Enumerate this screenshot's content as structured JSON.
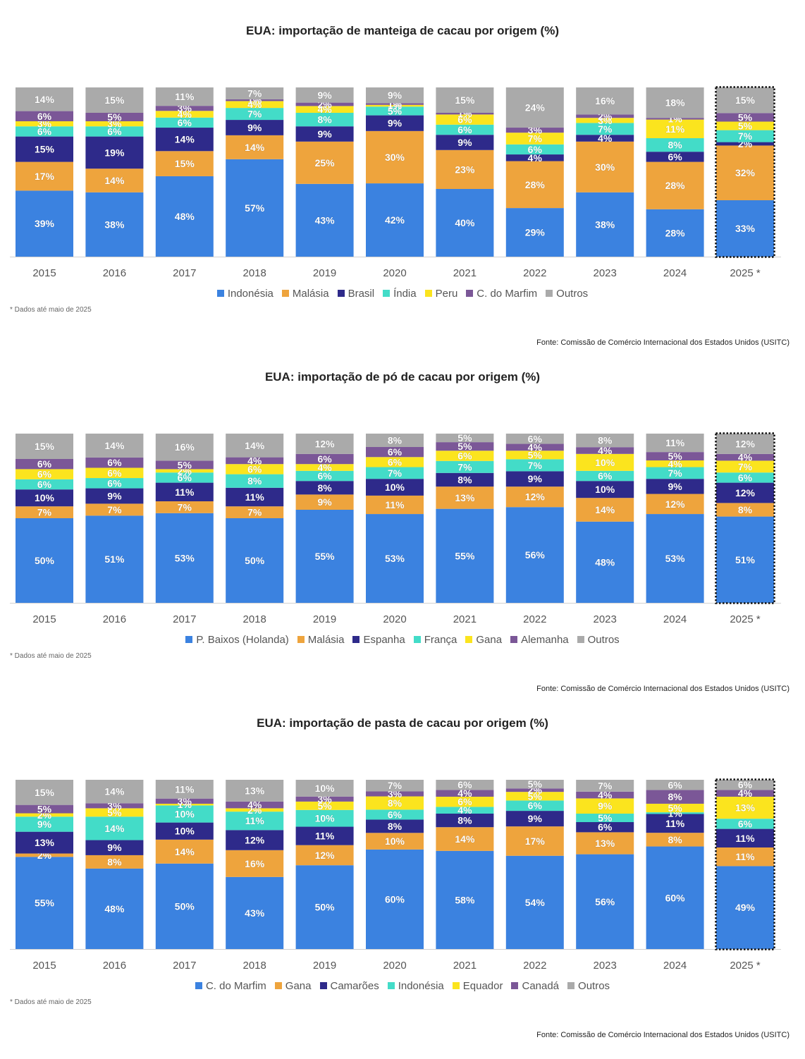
{
  "colors": {
    "blue": "#3b82e0",
    "orange": "#eea43d",
    "navy": "#2e2a8a",
    "teal": "#43dcc8",
    "yellow": "#fbe41e",
    "purple": "#7b5797",
    "gray": "#aaaaaa"
  },
  "charts": [
    {
      "title": "EUA: importação de manteiga de cacau por origem (%)",
      "note": "* Dados até maio de 2025",
      "source": "Fonte: Comissão de Comércio Internacional dos Estados Unidos (USITC)"
    },
    {
      "title": "EUA: importação de pó de cacau por origem (%)",
      "note": "* Dados até maio de 2025",
      "source": "Fonte: Comissão de Comércio Internacional dos Estados Unidos (USITC)"
    },
    {
      "title": "EUA: importação de pasta de cacau por origem (%)",
      "note": "* Dados até maio de 2025",
      "source": "Fonte: Comissão de Comércio Internacional dos Estados Unidos (USITC)"
    }
  ],
  "chart_data": [
    {
      "type": "bar",
      "stacked": true,
      "title": "EUA: importação de manteiga de cacau por origem (%)",
      "categories": [
        "2015",
        "2016",
        "2017",
        "2018",
        "2019",
        "2020",
        "2021",
        "2022",
        "2023",
        "2024",
        "2025 *"
      ],
      "highlighted_category": "2025 *",
      "ylim": [
        0,
        100
      ],
      "legend_position": "bottom-center",
      "series": [
        {
          "name": "Indonésia",
          "color": "blue",
          "values": [
            39,
            38,
            48,
            57,
            43,
            42,
            40,
            29,
            38,
            28,
            33
          ]
        },
        {
          "name": "Malásia",
          "color": "orange",
          "values": [
            17,
            14,
            15,
            14,
            25,
            30,
            23,
            28,
            30,
            28,
            32
          ]
        },
        {
          "name": "Brasil",
          "color": "navy",
          "values": [
            15,
            19,
            14,
            9,
            9,
            9,
            9,
            4,
            4,
            6,
            2
          ]
        },
        {
          "name": "Índia",
          "color": "teal",
          "values": [
            6,
            6,
            6,
            7,
            8,
            5,
            6,
            6,
            7,
            8,
            7
          ]
        },
        {
          "name": "Peru",
          "color": "yellow",
          "values": [
            3,
            3,
            4,
            4,
            4,
            1,
            6,
            7,
            3,
            11,
            5
          ]
        },
        {
          "name": "C. do Marfim",
          "color": "purple",
          "values": [
            6,
            5,
            3,
            1,
            2,
            1,
            1,
            3,
            2,
            1,
            5
          ]
        },
        {
          "name": "Outros",
          "color": "gray",
          "values": [
            14,
            15,
            11,
            7,
            9,
            9,
            15,
            24,
            16,
            18,
            15
          ]
        }
      ]
    },
    {
      "type": "bar",
      "stacked": true,
      "title": "EUA: importação de pó de cacau por origem (%)",
      "categories": [
        "2015",
        "2016",
        "2017",
        "2018",
        "2019",
        "2020",
        "2021",
        "2022",
        "2023",
        "2024",
        "2025 *"
      ],
      "highlighted_category": "2025 *",
      "ylim": [
        0,
        100
      ],
      "legend_position": "bottom-center",
      "series": [
        {
          "name": "P. Baixos (Holanda)",
          "color": "blue",
          "values": [
            50,
            51,
            53,
            50,
            55,
            53,
            55,
            56,
            48,
            53,
            51
          ]
        },
        {
          "name": "Malásia",
          "color": "orange",
          "values": [
            7,
            7,
            7,
            7,
            9,
            11,
            13,
            12,
            14,
            12,
            8
          ]
        },
        {
          "name": "Espanha",
          "color": "navy",
          "values": [
            10,
            9,
            11,
            11,
            8,
            10,
            8,
            9,
            10,
            9,
            12
          ]
        },
        {
          "name": "França",
          "color": "teal",
          "values": [
            6,
            6,
            6,
            8,
            6,
            7,
            7,
            7,
            6,
            7,
            6
          ]
        },
        {
          "name": "Gana",
          "color": "yellow",
          "values": [
            6,
            6,
            2,
            6,
            4,
            6,
            6,
            5,
            10,
            4,
            7
          ]
        },
        {
          "name": "Alemanha",
          "color": "purple",
          "values": [
            6,
            6,
            5,
            4,
            6,
            6,
            5,
            4,
            4,
            5,
            4
          ]
        },
        {
          "name": "Outros",
          "color": "gray",
          "values": [
            15,
            14,
            16,
            14,
            12,
            8,
            5,
            6,
            8,
            11,
            12
          ]
        }
      ]
    },
    {
      "type": "bar",
      "stacked": true,
      "title": "EUA: importação de pasta de cacau por origem (%)",
      "categories": [
        "2015",
        "2016",
        "2017",
        "2018",
        "2019",
        "2020",
        "2021",
        "2022",
        "2023",
        "2024",
        "2025 *"
      ],
      "highlighted_category": "2025 *",
      "ylim": [
        0,
        100
      ],
      "legend_position": "bottom-center",
      "series": [
        {
          "name": "C. do Marfim",
          "color": "blue",
          "values": [
            55,
            48,
            50,
            43,
            50,
            60,
            58,
            54,
            56,
            60,
            49
          ]
        },
        {
          "name": "Gana",
          "color": "orange",
          "values": [
            2,
            8,
            14,
            16,
            12,
            10,
            14,
            17,
            13,
            8,
            11
          ]
        },
        {
          "name": "Camarões",
          "color": "navy",
          "values": [
            13,
            9,
            10,
            12,
            11,
            8,
            8,
            9,
            6,
            11,
            11
          ]
        },
        {
          "name": "Indonésia",
          "color": "teal",
          "values": [
            9,
            14,
            10,
            11,
            10,
            6,
            4,
            6,
            5,
            1,
            6
          ]
        },
        {
          "name": "Equador",
          "color": "yellow",
          "values": [
            2,
            5,
            1,
            2,
            5,
            8,
            6,
            5,
            9,
            5,
            13
          ]
        },
        {
          "name": "Canadá",
          "color": "purple",
          "values": [
            5,
            3,
            3,
            4,
            3,
            3,
            4,
            2,
            4,
            8,
            4
          ]
        },
        {
          "name": "Outros",
          "color": "gray",
          "values": [
            15,
            14,
            11,
            13,
            10,
            7,
            6,
            5,
            7,
            6,
            6
          ]
        }
      ]
    }
  ]
}
